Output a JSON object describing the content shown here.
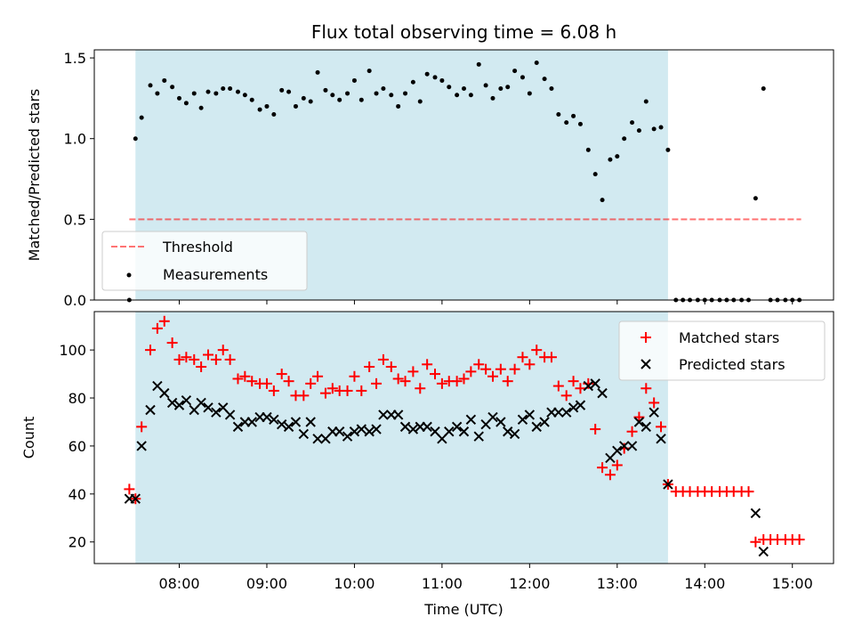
{
  "chart_data": {
    "type": "scatter",
    "title": "Flux total observing time = 6.08 h",
    "shaded_interval": [
      7.5,
      13.58
    ],
    "xlabel": "Time (UTC)",
    "xlim": [
      7.03,
      15.47
    ],
    "xticks": [
      8,
      9,
      10,
      11,
      12,
      13,
      14,
      15
    ],
    "xtick_labels": [
      "08:00",
      "09:00",
      "10:00",
      "11:00",
      "12:00",
      "13:00",
      "14:00",
      "15:00"
    ],
    "colors": {
      "shade": "#add8e6",
      "threshold": "#ff0000",
      "measurement": "#000000",
      "matched": "#ff0000",
      "predicted": "#000000"
    },
    "panels": [
      {
        "id": "ratio",
        "ylabel": "Matched/Predicted stars",
        "ylim": [
          0,
          1.55
        ],
        "yticks": [
          0.0,
          0.5,
          1.0,
          1.5
        ],
        "ytick_labels": [
          "0.0",
          "0.5",
          "1.0",
          "1.5"
        ],
        "legend_position": "lower-left",
        "threshold": {
          "label": "Threshold",
          "y": 0.5,
          "x_range": [
            7.43,
            15.1
          ]
        },
        "series": [
          {
            "name": "Measurements",
            "marker": "dot",
            "x": [
              7.43,
              7.5,
              7.57,
              7.67,
              7.75,
              7.83,
              7.92,
              8.0,
              8.08,
              8.17,
              8.25,
              8.33,
              8.42,
              8.5,
              8.58,
              8.67,
              8.75,
              8.83,
              8.92,
              9.0,
              9.08,
              9.17,
              9.25,
              9.33,
              9.42,
              9.5,
              9.58,
              9.67,
              9.75,
              9.83,
              9.92,
              10.0,
              10.08,
              10.17,
              10.25,
              10.33,
              10.42,
              10.5,
              10.58,
              10.67,
              10.75,
              10.83,
              10.92,
              11.0,
              11.08,
              11.17,
              11.25,
              11.33,
              11.42,
              11.5,
              11.58,
              11.67,
              11.75,
              11.83,
              11.92,
              12.0,
              12.08,
              12.17,
              12.25,
              12.33,
              12.42,
              12.5,
              12.58,
              12.67,
              12.75,
              12.83,
              12.92,
              13.0,
              13.08,
              13.17,
              13.25,
              13.33,
              13.42,
              13.5,
              13.58,
              13.67,
              13.75,
              13.83,
              13.92,
              14.0,
              14.08,
              14.17,
              14.25,
              14.33,
              14.42,
              14.5,
              14.58,
              14.67,
              14.75,
              14.83,
              14.92,
              15.0,
              15.08
            ],
            "y": [
              0.0,
              1.0,
              1.13,
              1.33,
              1.28,
              1.36,
              1.32,
              1.25,
              1.22,
              1.28,
              1.19,
              1.29,
              1.28,
              1.31,
              1.31,
              1.29,
              1.27,
              1.24,
              1.18,
              1.2,
              1.15,
              1.3,
              1.29,
              1.2,
              1.25,
              1.23,
              1.41,
              1.3,
              1.27,
              1.24,
              1.28,
              1.36,
              1.24,
              1.42,
              1.28,
              1.31,
              1.27,
              1.2,
              1.28,
              1.35,
              1.23,
              1.4,
              1.38,
              1.36,
              1.32,
              1.27,
              1.31,
              1.27,
              1.46,
              1.33,
              1.25,
              1.31,
              1.32,
              1.42,
              1.38,
              1.28,
              1.47,
              1.37,
              1.31,
              1.15,
              1.1,
              1.14,
              1.09,
              0.93,
              0.78,
              0.62,
              0.87,
              0.89,
              1.0,
              1.1,
              1.05,
              1.23,
              1.06,
              1.07,
              0.93,
              0.0,
              0.0,
              0.0,
              0.0,
              0.0,
              0.0,
              0.0,
              0.0,
              0.0,
              0.0,
              0.0,
              0.63,
              1.31,
              0.0,
              0.0,
              0.0,
              0.0,
              0.0
            ]
          }
        ]
      },
      {
        "id": "counts",
        "ylabel": "Count",
        "ylim": [
          11,
          116
        ],
        "yticks": [
          20,
          40,
          60,
          80,
          100
        ],
        "ytick_labels": [
          "20",
          "40",
          "60",
          "80",
          "100"
        ],
        "legend_position": "upper-right",
        "series": [
          {
            "name": "Matched stars",
            "marker": "plus",
            "x": [
              7.43,
              7.5,
              7.57,
              7.67,
              7.75,
              7.83,
              7.92,
              8.0,
              8.08,
              8.17,
              8.25,
              8.33,
              8.42,
              8.5,
              8.58,
              8.67,
              8.75,
              8.83,
              8.92,
              9.0,
              9.08,
              9.17,
              9.25,
              9.33,
              9.42,
              9.5,
              9.58,
              9.67,
              9.75,
              9.83,
              9.92,
              10.0,
              10.08,
              10.17,
              10.25,
              10.33,
              10.42,
              10.5,
              10.58,
              10.67,
              10.75,
              10.83,
              10.92,
              11.0,
              11.08,
              11.17,
              11.25,
              11.33,
              11.42,
              11.5,
              11.58,
              11.67,
              11.75,
              11.83,
              11.92,
              12.0,
              12.08,
              12.17,
              12.25,
              12.33,
              12.42,
              12.5,
              12.58,
              12.67,
              12.75,
              12.83,
              12.92,
              13.0,
              13.08,
              13.17,
              13.25,
              13.33,
              13.42,
              13.5,
              13.58,
              13.67,
              13.75,
              13.83,
              13.92,
              14.0,
              14.08,
              14.17,
              14.25,
              14.33,
              14.42,
              14.5,
              14.58,
              14.67,
              14.75,
              14.83,
              14.92,
              15.0,
              15.08
            ],
            "y": [
              42,
              38,
              68,
              100,
              109,
              112,
              103,
              96,
              97,
              96,
              93,
              98,
              96,
              100,
              96,
              88,
              89,
              87,
              86,
              86,
              83,
              90,
              87,
              81,
              81,
              86,
              89,
              82,
              84,
              83,
              83,
              89,
              83,
              93,
              86,
              96,
              93,
              88,
              87,
              91,
              84,
              94,
              90,
              86,
              87,
              87,
              88,
              91,
              94,
              92,
              89,
              92,
              87,
              92,
              97,
              94,
              100,
              97,
              97,
              85,
              81,
              87,
              84,
              86,
              67,
              51,
              48,
              52,
              59,
              66,
              72,
              84,
              78,
              68,
              44,
              41,
              41,
              41,
              41,
              41,
              41,
              41,
              41,
              41,
              41,
              41,
              20,
              21,
              21,
              21,
              21,
              21,
              21
            ]
          },
          {
            "name": "Predicted stars",
            "marker": "x",
            "x": [
              7.43,
              7.5,
              7.57,
              7.67,
              7.75,
              7.83,
              7.92,
              8.0,
              8.08,
              8.17,
              8.25,
              8.33,
              8.42,
              8.5,
              8.58,
              8.67,
              8.75,
              8.83,
              8.92,
              9.0,
              9.08,
              9.17,
              9.25,
              9.33,
              9.42,
              9.5,
              9.58,
              9.67,
              9.75,
              9.83,
              9.92,
              10.0,
              10.08,
              10.17,
              10.25,
              10.33,
              10.42,
              10.5,
              10.58,
              10.67,
              10.75,
              10.83,
              10.92,
              11.0,
              11.08,
              11.17,
              11.25,
              11.33,
              11.42,
              11.5,
              11.58,
              11.67,
              11.75,
              11.83,
              11.92,
              12.0,
              12.08,
              12.17,
              12.25,
              12.33,
              12.42,
              12.5,
              12.58,
              12.67,
              12.75,
              12.83,
              12.92,
              13.0,
              13.08,
              13.17,
              13.25,
              13.33,
              13.42,
              13.5,
              13.58,
              14.58,
              14.67
            ],
            "y": [
              38,
              38,
              60,
              75,
              85,
              82,
              78,
              77,
              79,
              75,
              78,
              76,
              74,
              76,
              73,
              68,
              70,
              70,
              72,
              72,
              71,
              69,
              68,
              70,
              65,
              70,
              63,
              63,
              66,
              66,
              64,
              66,
              67,
              66,
              67,
              73,
              73,
              73,
              68,
              67,
              68,
              68,
              66,
              63,
              66,
              68,
              66,
              71,
              64,
              69,
              72,
              70,
              66,
              65,
              71,
              73,
              68,
              70,
              74,
              74,
              74,
              76,
              77,
              85,
              86,
              82,
              55,
              58,
              60,
              60,
              70,
              68,
              74,
              63,
              44,
              32,
              16
            ]
          }
        ]
      }
    ]
  }
}
